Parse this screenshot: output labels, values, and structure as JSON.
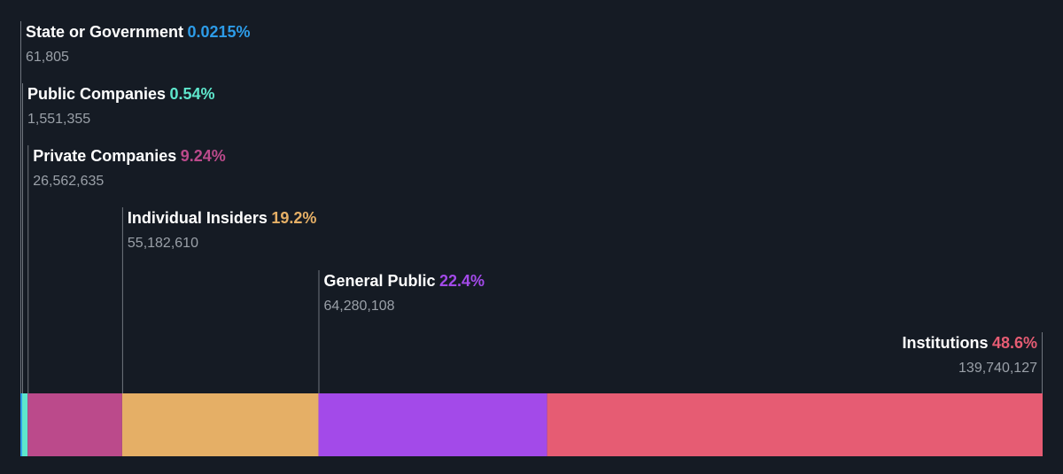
{
  "chart_data": {
    "type": "bar",
    "orientation": "horizontal-stacked",
    "series": [
      {
        "name": "State or Government",
        "percent_label": "0.0215%",
        "percent": 0.0215,
        "value_label": "61,805",
        "value": 61805,
        "color": "#2d9ce8"
      },
      {
        "name": "Public Companies",
        "percent_label": "0.54%",
        "percent": 0.54,
        "value_label": "1,551,355",
        "value": 1551355,
        "color": "#5ee6cc"
      },
      {
        "name": "Private Companies",
        "percent_label": "9.24%",
        "percent": 9.24,
        "value_label": "26,562,635",
        "value": 26562635,
        "color": "#bb4a8b"
      },
      {
        "name": "Individual Insiders",
        "percent_label": "19.2%",
        "percent": 19.2,
        "value_label": "55,182,610",
        "value": 55182610,
        "color": "#e5af66"
      },
      {
        "name": "General Public",
        "percent_label": "22.4%",
        "percent": 22.4,
        "value_label": "64,280,108",
        "value": 64280108,
        "color": "#a34ae9"
      },
      {
        "name": "Institutions",
        "percent_label": "48.6%",
        "percent": 48.6,
        "value_label": "139,740,127",
        "value": 139740127,
        "color": "#e65c73"
      }
    ],
    "legend": "none",
    "grid": false
  },
  "colors": {
    "background": "#151b24",
    "label_text": "#ffffff",
    "count_text": "#9aa0a8",
    "leader_line": "#6f757d"
  }
}
